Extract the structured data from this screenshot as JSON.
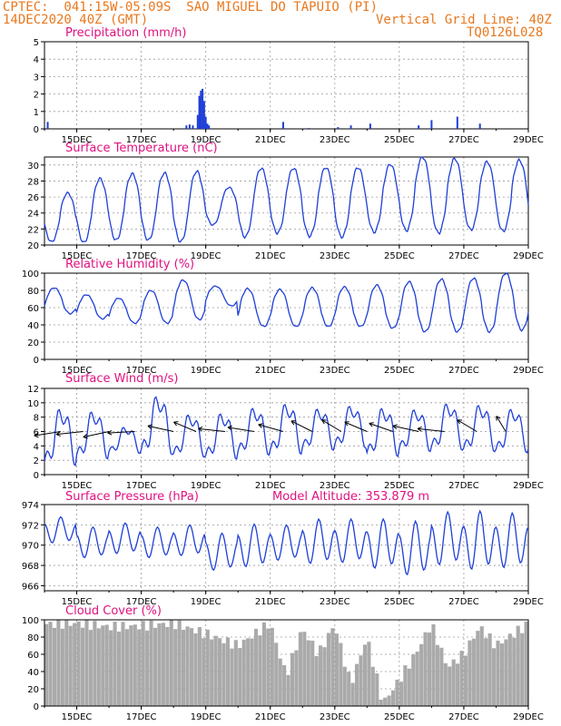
{
  "header": {
    "line1_left": "CPTEC:  041:15W-05:09S  SAO MIGUEL DO TAPUIO (PI)",
    "line2_left": "14DEC2020 40Z (GMT)",
    "line2_right": "Vertical Grid Line: 40Z",
    "line3_right": "TQ0126L028",
    "altitude": "Model Altitude: 353.879 m"
  },
  "colors": {
    "header": "#e8781e",
    "title": "#e0107f",
    "series": "#1f3fd8",
    "cloud": "#aaaaaa",
    "arrow": "#000000"
  },
  "x_ticks": [
    "15DEC",
    "17DEC",
    "19DEC",
    "21DEC",
    "23DEC",
    "25DEC",
    "27DEC",
    "29DEC"
  ],
  "chart_data": [
    {
      "type": "bar",
      "title": "Precipitation (mm/h)",
      "ylim": [
        0,
        5
      ],
      "yticks": [
        0,
        1,
        2,
        3,
        4,
        5
      ],
      "xrange": [
        "14DEC2020",
        "29DEC2020"
      ],
      "x": [
        0.1,
        4.4,
        4.5,
        4.6,
        4.75,
        4.8,
        4.85,
        4.9,
        4.95,
        5.0,
        5.05,
        5.1,
        7.4,
        8.2,
        9.1,
        9.5,
        10.1,
        11.6,
        12.0,
        12.8,
        13.5
      ],
      "values": [
        0.4,
        0.2,
        0.25,
        0.2,
        0.8,
        1.9,
        2.2,
        2.3,
        1.6,
        0.7,
        0.3,
        0.2,
        0.4,
        0.05,
        0.1,
        0.2,
        0.3,
        0.2,
        0.5,
        0.7,
        0.3
      ]
    },
    {
      "type": "line",
      "title": "Surface Temperature (nC)",
      "ylim": [
        20,
        31
      ],
      "yticks": [
        20,
        22,
        24,
        26,
        28,
        30
      ],
      "xrange": [
        "14DEC2020",
        "29DEC2020"
      ],
      "daily_max": [
        26.5,
        28.3,
        28.9,
        29.0,
        29.2,
        27.2,
        29.6,
        29.6,
        29.7,
        29.7,
        30.1,
        31.0,
        30.8,
        30.4,
        30.6,
        30.7
      ],
      "daily_min": [
        20.4,
        20.3,
        20.6,
        20.6,
        20.4,
        22.5,
        21.0,
        21.5,
        21.1,
        21.0,
        21.6,
        21.8,
        21.5,
        21.9,
        21.7,
        21.7
      ]
    },
    {
      "type": "line",
      "title": "Relative Humidity (%)",
      "ylim": [
        0,
        100
      ],
      "yticks": [
        0,
        20,
        40,
        60,
        80,
        100
      ],
      "xrange": [
        "14DEC2020",
        "29DEC2020"
      ],
      "daily_max": [
        83,
        75,
        71,
        80,
        92,
        85,
        82,
        81,
        83,
        84,
        86,
        90,
        93,
        94,
        100,
        91
      ],
      "daily_min": [
        53,
        47,
        42,
        42,
        46,
        62,
        38,
        38,
        38,
        38,
        36,
        32,
        32,
        32,
        34,
        33
      ]
    },
    {
      "type": "line",
      "title": "Surface Wind (m/s)",
      "ylim": [
        0,
        12
      ],
      "yticks": [
        0,
        2,
        4,
        6,
        8,
        10,
        12
      ],
      "xrange": [
        "14DEC2020",
        "29DEC2020"
      ],
      "daily_max": [
        10.0,
        9.5,
        7.0,
        11.8,
        9.0,
        9.2,
        10.0,
        10.6,
        9.8,
        10.2,
        10.0,
        9.7,
        10.6,
        10.4,
        9.8,
        8.3
      ],
      "daily_min": [
        0.3,
        1.4,
        2.5,
        1.8,
        1.7,
        1.4,
        1.9,
        2.0,
        2.7,
        3.0,
        1.7,
        2.5,
        2.6,
        2.4,
        2.3,
        2.3
      ],
      "arrows_x": [
        0.5,
        1.2,
        2.0,
        2.8,
        4.0,
        4.7,
        5.6,
        6.5,
        7.4,
        8.3,
        9.2,
        10.0,
        10.8,
        11.6,
        12.4,
        13.4,
        14.3
      ],
      "arrows_dir_deg": [
        165,
        170,
        160,
        175,
        200,
        215,
        190,
        195,
        205,
        220,
        225,
        215,
        210,
        200,
        190,
        225,
        250
      ]
    },
    {
      "type": "line",
      "title": "Surface Pressure (hPa)",
      "ylim": [
        965.5,
        974
      ],
      "yticks": [
        966,
        968,
        970,
        972,
        974
      ],
      "xrange": [
        "14DEC2020",
        "29DEC2020"
      ],
      "semi_max": [
        972.8,
        971.8,
        972.2,
        971.8,
        972.0,
        971.2,
        972.1,
        972.0,
        972.6,
        972.6,
        972.6,
        972.4,
        973.3,
        973.4,
        973.2,
        972.6
      ],
      "semi_min": [
        970.0,
        968.5,
        968.9,
        968.5,
        968.7,
        967.2,
        967.5,
        968.2,
        967.8,
        967.9,
        967.3,
        966.6,
        967.6,
        967.1,
        967.3,
        967.2
      ]
    },
    {
      "type": "area",
      "title": "Cloud Cover (%)",
      "ylim": [
        0,
        100
      ],
      "yticks": [
        0,
        20,
        40,
        60,
        80,
        100
      ],
      "xrange": [
        "14DEC2020",
        "29DEC2020"
      ],
      "x": [
        0,
        1,
        2,
        3,
        4,
        5,
        6,
        7,
        7.5,
        8,
        8.5,
        9,
        9.5,
        10,
        10.5,
        11,
        11.5,
        12,
        12.5,
        13,
        13.5,
        14,
        15
      ],
      "values": [
        95,
        96,
        92,
        93,
        96,
        84,
        70,
        96,
        35,
        90,
        60,
        95,
        25,
        80,
        3,
        30,
        60,
        95,
        45,
        60,
        92,
        70,
        95
      ]
    }
  ]
}
